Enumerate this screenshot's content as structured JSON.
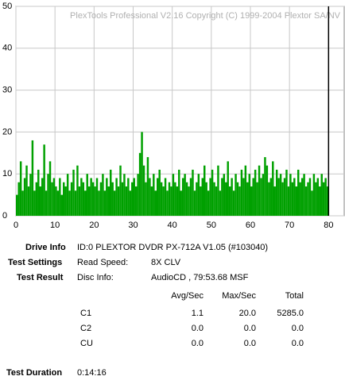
{
  "chart_data": {
    "type": "bar",
    "title": "PlexTools Professional V2.16 Copyright (C) 1999-2004 Plextor SA/NV",
    "color": "#00a000",
    "grid": true,
    "xlim": [
      0,
      84
    ],
    "ylim": [
      0,
      50
    ],
    "xticks": [
      0,
      10,
      20,
      30,
      40,
      50,
      60,
      70,
      80
    ],
    "yticks": [
      0,
      10,
      20,
      30,
      40,
      50
    ],
    "capacity_line": 80,
    "x": [
      0,
      0.5,
      1,
      1.5,
      2,
      2.5,
      3,
      3.5,
      4,
      4.5,
      5,
      5.5,
      6,
      6.5,
      7,
      7.5,
      8,
      8.5,
      9,
      9.5,
      10,
      10.5,
      11,
      11.5,
      12,
      12.5,
      13,
      13.5,
      14,
      14.5,
      15,
      15.5,
      16,
      16.5,
      17,
      17.5,
      18,
      18.5,
      19,
      19.5,
      20,
      20.5,
      21,
      21.5,
      22,
      22.5,
      23,
      23.5,
      24,
      24.5,
      25,
      25.5,
      26,
      26.5,
      27,
      27.5,
      28,
      28.5,
      29,
      29.5,
      30,
      30.5,
      31,
      31.5,
      32,
      32.5,
      33,
      33.5,
      34,
      34.5,
      35,
      35.5,
      36,
      36.5,
      37,
      37.5,
      38,
      38.5,
      39,
      39.5,
      40,
      40.5,
      41,
      41.5,
      42,
      42.5,
      43,
      43.5,
      44,
      44.5,
      45,
      45.5,
      46,
      46.5,
      47,
      47.5,
      48,
      48.5,
      49,
      49.5,
      50,
      50.5,
      51,
      51.5,
      52,
      52.5,
      53,
      53.5,
      54,
      54.5,
      55,
      55.5,
      56,
      56.5,
      57,
      57.5,
      58,
      58.5,
      59,
      59.5,
      60,
      60.5,
      61,
      61.5,
      62,
      62.5,
      63,
      63.5,
      64,
      64.5,
      65,
      65.5,
      66,
      66.5,
      67,
      67.5,
      68,
      68.5,
      69,
      69.5,
      70,
      70.5,
      71,
      71.5,
      72,
      72.5,
      73,
      73.5,
      74,
      74.5,
      75,
      75.5,
      76,
      76.5,
      77,
      77.5,
      78,
      78.5,
      79,
      79.5
    ],
    "values": [
      5,
      8,
      13,
      6,
      9,
      12,
      7,
      10,
      18,
      6,
      8,
      11,
      7,
      9,
      17,
      6,
      10,
      13,
      8,
      9,
      7,
      6,
      9,
      5,
      8,
      7,
      10,
      6,
      8,
      11,
      6,
      12,
      7,
      9,
      8,
      6,
      10,
      7,
      9,
      8,
      7,
      9,
      6,
      8,
      10,
      6,
      9,
      7,
      11,
      8,
      6,
      9,
      7,
      12,
      8,
      10,
      7,
      9,
      6,
      8,
      9,
      7,
      10,
      15,
      20,
      12,
      8,
      14,
      9,
      7,
      10,
      6,
      9,
      11,
      8,
      7,
      9,
      6,
      8,
      7,
      10,
      8,
      7,
      11,
      6,
      9,
      10,
      8,
      7,
      9,
      11,
      6,
      8,
      10,
      7,
      9,
      12,
      8,
      6,
      9,
      11,
      8,
      7,
      12,
      6,
      9,
      10,
      8,
      13,
      7,
      9,
      6,
      10,
      8,
      7,
      11,
      9,
      12,
      8,
      10,
      7,
      9,
      11,
      8,
      12,
      9,
      10,
      14,
      12,
      8,
      9,
      13,
      7,
      11,
      9,
      10,
      8,
      9,
      11,
      7,
      10,
      8,
      9,
      7,
      11,
      8,
      9,
      10,
      7,
      8,
      9,
      6,
      10,
      8,
      9,
      7,
      10,
      8,
      9,
      7
    ]
  },
  "info": {
    "drive": {
      "label": "Drive Info",
      "value": "ID:0 PLEXTOR DVDR PX-712A V1.05 (#103040)"
    },
    "settings": {
      "label": "Test Settings",
      "key": "Read Speed:",
      "value": "8X CLV"
    },
    "result": {
      "label": "Test Result",
      "key": "Disc Info:",
      "value": "AudioCD , 79:53.68 MSF"
    },
    "table": {
      "header": [
        "Avg/Sec",
        "Max/Sec",
        "Total"
      ],
      "rows": [
        [
          "C1",
          "1.1",
          "20.0",
          "5285.0"
        ],
        [
          "C2",
          "0.0",
          "0.0",
          "0.0"
        ],
        [
          "CU",
          "0.0",
          "0.0",
          "0.0"
        ]
      ]
    },
    "duration": {
      "label": "Test Duration",
      "value": "0:14:16"
    }
  }
}
